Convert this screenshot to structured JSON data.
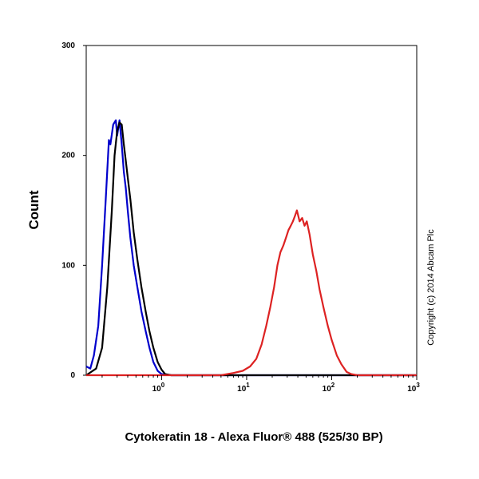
{
  "chart_data": {
    "type": "line",
    "title": "",
    "xlabel": "Cytokeratin 18 - Alexa Fluor® 488 (525/30 BP)",
    "ylabel": "Count",
    "xscale": "log",
    "xlim": [
      0.13,
      1000
    ],
    "ylim": [
      0,
      300
    ],
    "grid": false,
    "legend": "none",
    "x_ticks": [
      {
        "value": 1,
        "base": "10",
        "exp": "0"
      },
      {
        "value": 10,
        "base": "10",
        "exp": "1"
      },
      {
        "value": 100,
        "base": "10",
        "exp": "2"
      },
      {
        "value": 1000,
        "base": "10",
        "exp": "3"
      }
    ],
    "y_ticks": [
      0,
      100,
      200,
      300
    ],
    "annotation": "Copyright (c) 2014 Abcam Plc",
    "series": [
      {
        "color": "#0000cc",
        "x": [
          0.13,
          0.145,
          0.16,
          0.18,
          0.2,
          0.22,
          0.24,
          0.25,
          0.27,
          0.29,
          0.3,
          0.32,
          0.34,
          0.36,
          0.38,
          0.4,
          0.43,
          0.47,
          0.52,
          0.58,
          0.65,
          0.72,
          0.8,
          0.9,
          1.0,
          1.3,
          2,
          5,
          20,
          100,
          1000
        ],
        "y": [
          8,
          6,
          18,
          45,
          100,
          158,
          214,
          210,
          228,
          232,
          218,
          232,
          210,
          185,
          170,
          150,
          125,
          100,
          80,
          58,
          40,
          25,
          12,
          4,
          1,
          0,
          0,
          0,
          0,
          0,
          0
        ]
      },
      {
        "color": "#000000",
        "x": [
          0.13,
          0.17,
          0.2,
          0.23,
          0.26,
          0.28,
          0.3,
          0.32,
          0.34,
          0.36,
          0.38,
          0.4,
          0.43,
          0.47,
          0.52,
          0.58,
          0.65,
          0.72,
          0.8,
          0.9,
          1.0,
          1.1,
          1.3,
          2,
          5,
          20,
          100,
          1000
        ],
        "y": [
          0,
          6,
          25,
          80,
          150,
          200,
          222,
          230,
          228,
          210,
          195,
          180,
          160,
          130,
          105,
          80,
          58,
          40,
          25,
          12,
          5,
          1,
          0,
          0,
          0,
          0,
          0,
          0
        ]
      },
      {
        "color": "#dd2222",
        "x": [
          0.13,
          5,
          7,
          9,
          11,
          13,
          15,
          17,
          19,
          21,
          23,
          25,
          27,
          29,
          31,
          33,
          35,
          37,
          39,
          42,
          45,
          48,
          51,
          55,
          60,
          66,
          72,
          80,
          90,
          100,
          115,
          130,
          150,
          170,
          200,
          1000
        ],
        "y": [
          0,
          0,
          2,
          4,
          8,
          15,
          28,
          45,
          62,
          80,
          100,
          112,
          118,
          125,
          132,
          136,
          140,
          145,
          150,
          140,
          143,
          136,
          140,
          128,
          110,
          95,
          78,
          62,
          45,
          32,
          18,
          10,
          3,
          1,
          0,
          0
        ]
      }
    ]
  }
}
